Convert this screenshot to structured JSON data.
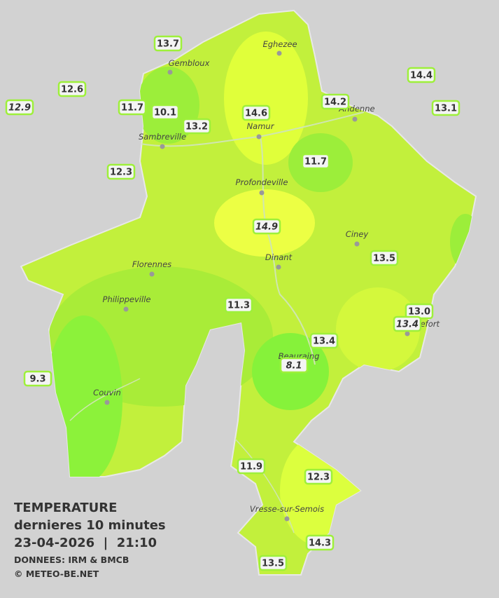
{
  "legend": {
    "title": "TEMPERATURE",
    "subtitle": "dernieres 10 minutes",
    "datetime": "23-04-2026  |  21:10",
    "source": "DONNEES: IRM & BMCB",
    "credit": "© METEO-BE.NET"
  },
  "cities": [
    "Eghezee",
    "Gembloux",
    "Andenne",
    "Namur",
    "Sambreville",
    "Profondeville",
    "Ciney",
    "Dinant",
    "Florennes",
    "Philippeville",
    "Couvin",
    "Vresse-sur-Semois",
    "Rochefort",
    "Beauraing"
  ],
  "stations": [
    {
      "value": "13.7"
    },
    {
      "value": "14.4"
    },
    {
      "value": "12.6"
    },
    {
      "value": "12.9",
      "style": "italic"
    },
    {
      "value": "11.7"
    },
    {
      "value": "10.1"
    },
    {
      "value": "13.2"
    },
    {
      "value": "14.6"
    },
    {
      "value": "14.2"
    },
    {
      "value": "13.1"
    },
    {
      "value": "12.3"
    },
    {
      "value": "11.7"
    },
    {
      "value": "14.9",
      "style": "italic"
    },
    {
      "value": "13.5"
    },
    {
      "value": "11.3"
    },
    {
      "value": "13.0"
    },
    {
      "value": "13.4",
      "style": "italic"
    },
    {
      "value": "13.4"
    },
    {
      "value": "9.3"
    },
    {
      "value": "8.1",
      "style": "italic"
    },
    {
      "value": "11.9"
    },
    {
      "value": "12.3"
    },
    {
      "value": "14.3"
    },
    {
      "value": "13.5"
    }
  ]
}
